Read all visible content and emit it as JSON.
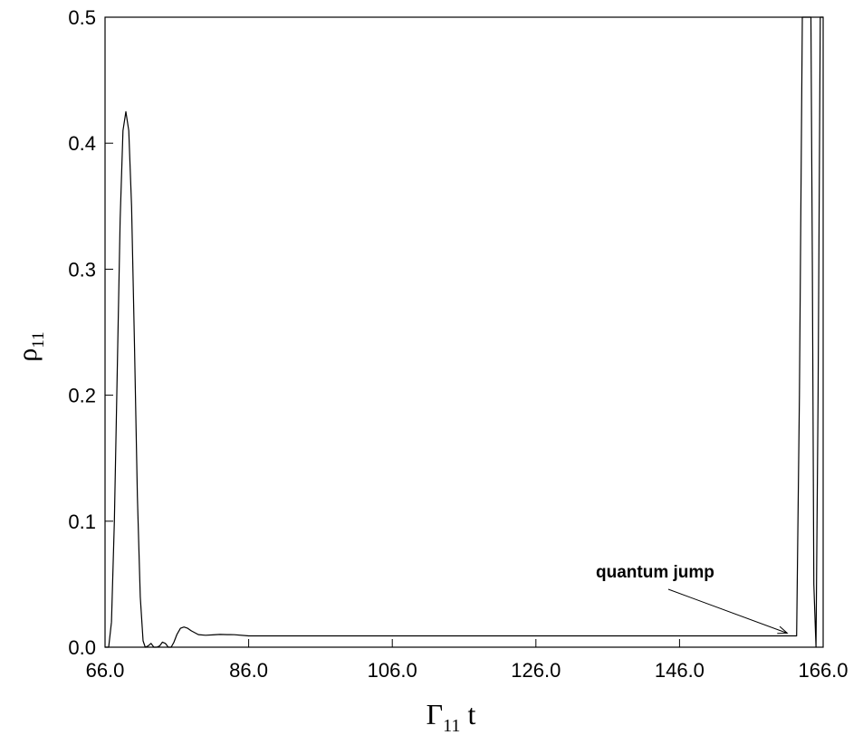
{
  "chart_data": {
    "type": "line",
    "title": "",
    "xlabel": {
      "main": "Γ",
      "sub": "11",
      "suffix": " t"
    },
    "ylabel": {
      "main": "ρ",
      "sub": "11"
    },
    "xlim": [
      66.0,
      166.0
    ],
    "ylim": [
      0.0,
      0.5
    ],
    "x_ticks": [
      66.0,
      86.0,
      106.0,
      126.0,
      146.0,
      166.0
    ],
    "x_tick_labels": [
      "66.0",
      "86.0",
      "106.0",
      "126.0",
      "146.0",
      "166.0"
    ],
    "y_ticks": [
      0.0,
      0.1,
      0.2,
      0.3,
      0.4,
      0.5
    ],
    "y_tick_labels": [
      "0.0",
      "0.1",
      "0.2",
      "0.3",
      "0.4",
      "0.5"
    ],
    "grid": false,
    "legend": "none",
    "series": [
      {
        "x": [
          66.0,
          66.5,
          66.9,
          67.3,
          67.7,
          68.1,
          68.5,
          68.9,
          69.3,
          69.7,
          70.1,
          70.5,
          70.9,
          71.3,
          71.6,
          72.0,
          72.4,
          72.8,
          73.2,
          73.6,
          74.0,
          74.4,
          74.8,
          75.2,
          75.6,
          76.0,
          76.5,
          77.0,
          77.5,
          78.0,
          79.0,
          80.0,
          81.0,
          82.0,
          83.0,
          84.0,
          86.0,
          90.0,
          100.0,
          120.0,
          140.0,
          160.0,
          161.5,
          162.3,
          162.7,
          163.1,
          163.5,
          163.9,
          164.3,
          164.5,
          164.7,
          165.0,
          165.3,
          165.6,
          166.0
        ],
        "y": [
          0.0,
          0.0,
          0.02,
          0.1,
          0.22,
          0.34,
          0.41,
          0.425,
          0.41,
          0.35,
          0.24,
          0.12,
          0.04,
          0.005,
          0.0,
          0.001,
          0.003,
          0.0,
          0.0,
          0.001,
          0.004,
          0.003,
          0.0,
          0.0,
          0.004,
          0.01,
          0.015,
          0.016,
          0.015,
          0.013,
          0.01,
          0.0095,
          0.0098,
          0.0101,
          0.01,
          0.0099,
          0.009,
          0.009,
          0.009,
          0.009,
          0.009,
          0.009,
          0.009,
          0.009,
          0.2,
          0.5,
          0.5,
          0.5,
          0.5,
          0.3,
          0.05,
          0.0,
          0.2,
          0.5,
          0.5
        ]
      }
    ],
    "annotations": [
      {
        "text": "quantum jump",
        "target_x": 161.5,
        "target_y": 0.009
      }
    ]
  }
}
